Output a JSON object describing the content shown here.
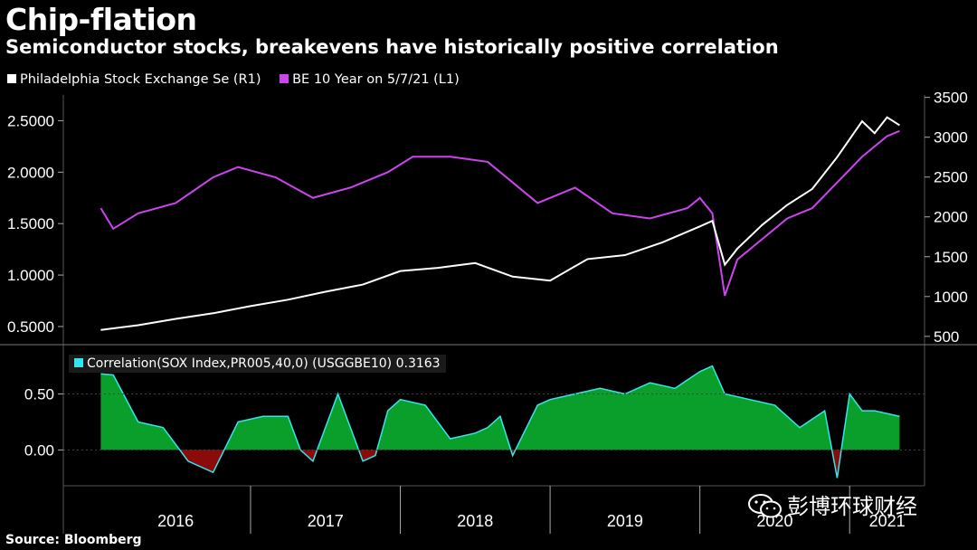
{
  "title": "Chip-flation",
  "subtitle": "Semiconductor stocks, breakevens have historically positive correlation",
  "source": "Source: Bloomberg",
  "watermark": "彭博环球财经",
  "colors": {
    "sox": "#ffffff",
    "be": "#cc44ee",
    "corr_pos": "#0a9e2a",
    "corr_neg": "#8b0a0a",
    "corr_line": "#33e6ee",
    "axis": "#888888"
  },
  "chart_data": [
    {
      "type": "line",
      "title": "",
      "legend_position": "top-left",
      "series": [
        {
          "name": "Philadelphia Stock Exchange Se (R1)",
          "axis": "right",
          "x": [
            "2016-01",
            "2016-04",
            "2016-07",
            "2016-10",
            "2017-01",
            "2017-04",
            "2017-07",
            "2017-10",
            "2018-01",
            "2018-04",
            "2018-07",
            "2018-10",
            "2019-01",
            "2019-04",
            "2019-07",
            "2019-10",
            "2020-01",
            "2020-02",
            "2020-03",
            "2020-04",
            "2020-06",
            "2020-08",
            "2020-10",
            "2020-12",
            "2021-02",
            "2021-03",
            "2021-04",
            "2021-05"
          ],
          "values": [
            580,
            640,
            720,
            790,
            880,
            960,
            1060,
            1150,
            1320,
            1360,
            1420,
            1250,
            1200,
            1470,
            1520,
            1680,
            1880,
            1950,
            1400,
            1600,
            1900,
            2150,
            2350,
            2750,
            3200,
            3050,
            3250,
            3150
          ]
        },
        {
          "name": "BE 10 Year on 5/7/21 (L1)",
          "axis": "left",
          "x": [
            "2016-01",
            "2016-02",
            "2016-04",
            "2016-07",
            "2016-10",
            "2016-12",
            "2017-03",
            "2017-06",
            "2017-09",
            "2017-12",
            "2018-02",
            "2018-05",
            "2018-08",
            "2018-10",
            "2018-12",
            "2019-03",
            "2019-06",
            "2019-09",
            "2019-12",
            "2020-01",
            "2020-02",
            "2020-03",
            "2020-04",
            "2020-06",
            "2020-08",
            "2020-10",
            "2020-12",
            "2021-02",
            "2021-04",
            "2021-05"
          ],
          "values": [
            1.65,
            1.45,
            1.6,
            1.7,
            1.95,
            2.05,
            1.95,
            1.75,
            1.85,
            2.0,
            2.15,
            2.15,
            2.1,
            1.9,
            1.7,
            1.85,
            1.6,
            1.55,
            1.65,
            1.75,
            1.6,
            0.8,
            1.15,
            1.35,
            1.55,
            1.65,
            1.9,
            2.15,
            2.35,
            2.4
          ]
        }
      ],
      "y_left": {
        "ticks": [
          "0.5000",
          "1.0000",
          "1.5000",
          "2.0000",
          "2.5000"
        ],
        "ylim": [
          0.35,
          2.75
        ]
      },
      "y_right": {
        "ticks": [
          "500",
          "1000",
          "1500",
          "2000",
          "2500",
          "3000",
          "3500"
        ],
        "ylim": [
          430,
          3530
        ]
      },
      "xlim": [
        "2015-10",
        "2021-07"
      ]
    },
    {
      "type": "area",
      "legend": "Correlation(SOX Index,PR005,40,0) (USGGBE10) 0.3163",
      "y_ticks": [
        "0.00",
        "0.50"
      ],
      "ylim": [
        -0.32,
        0.9
      ],
      "x_labels": [
        "2016",
        "2017",
        "2018",
        "2019",
        "2020",
        "2021"
      ],
      "series": [
        {
          "name": "Correlation(SOX Index,PR005,40,0) (USGGBE10)",
          "x": [
            "2016-01",
            "2016-02",
            "2016-04",
            "2016-06",
            "2016-08",
            "2016-10",
            "2016-12",
            "2017-02",
            "2017-04",
            "2017-05",
            "2017-06",
            "2017-08",
            "2017-09",
            "2017-10",
            "2017-11",
            "2017-12",
            "2018-01",
            "2018-03",
            "2018-05",
            "2018-07",
            "2018-08",
            "2018-09",
            "2018-10",
            "2018-12",
            "2019-01",
            "2019-03",
            "2019-05",
            "2019-07",
            "2019-09",
            "2019-11",
            "2020-01",
            "2020-02",
            "2020-03",
            "2020-05",
            "2020-07",
            "2020-09",
            "2020-11",
            "2020-12",
            "2021-01",
            "2021-02",
            "2021-03",
            "2021-05"
          ],
          "values": [
            0.68,
            0.67,
            0.25,
            0.2,
            -0.1,
            -0.2,
            0.25,
            0.3,
            0.3,
            0.0,
            -0.1,
            0.5,
            0.2,
            -0.1,
            -0.05,
            0.35,
            0.45,
            0.4,
            0.1,
            0.15,
            0.2,
            0.3,
            -0.05,
            0.4,
            0.45,
            0.5,
            0.55,
            0.5,
            0.6,
            0.55,
            0.7,
            0.75,
            0.5,
            0.45,
            0.4,
            0.2,
            0.35,
            -0.25,
            0.5,
            0.35,
            0.35,
            0.3
          ]
        }
      ]
    }
  ]
}
